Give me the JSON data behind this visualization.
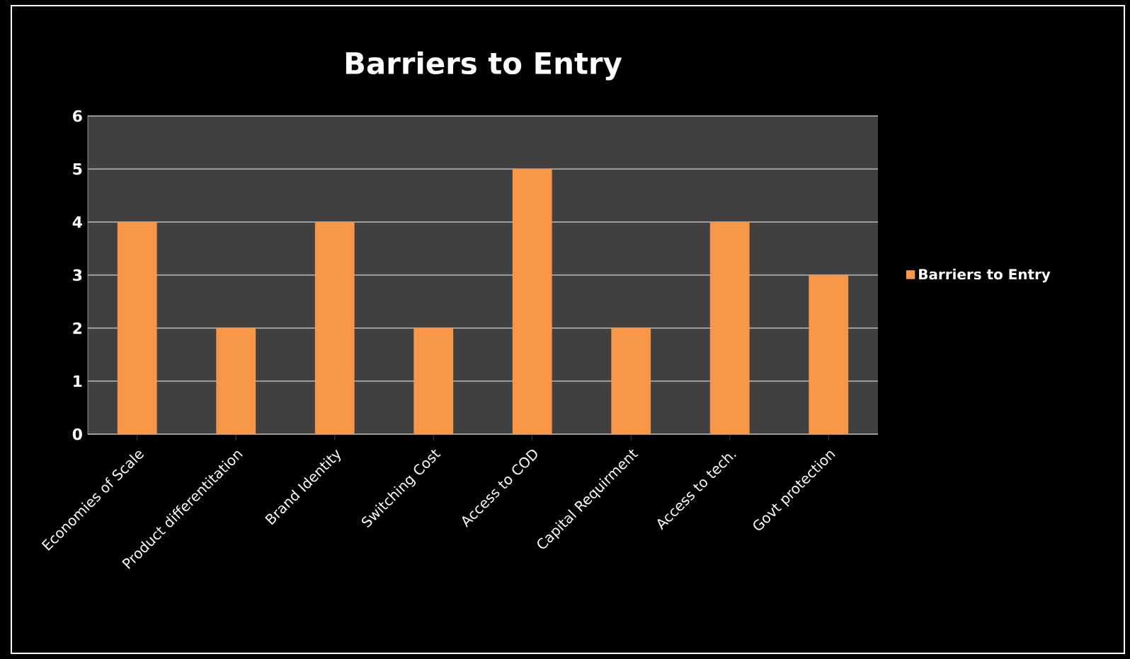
{
  "chart_data": {
    "type": "bar",
    "title": "Barriers to Entry",
    "categories": [
      "Economies of Scale",
      "Product differentitation",
      "Brand Identity",
      "Switching Cost",
      "Access to COD",
      "Capital Requirment",
      "Access to tech.",
      "Govt protection"
    ],
    "series": [
      {
        "name": "Barriers to Entry",
        "color": "#f79646",
        "values": [
          4,
          2,
          4,
          2,
          5,
          2,
          4,
          3
        ]
      }
    ],
    "ylim": [
      0,
      6
    ],
    "yticks": [
      0,
      1,
      2,
      3,
      4,
      5,
      6
    ],
    "grid": "y",
    "legend": "right"
  }
}
